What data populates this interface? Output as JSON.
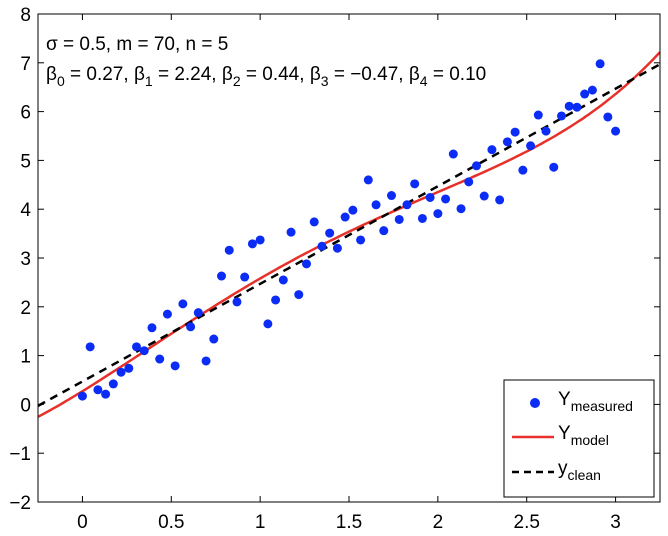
{
  "chart_data": {
    "type": "scatter",
    "title": "",
    "xlabel": "",
    "ylabel": "",
    "xlim": [
      -0.25,
      3.25
    ],
    "ylim": [
      -2,
      8
    ],
    "xticks": [
      "0",
      "0.5",
      "1",
      "1.5",
      "2",
      "2.5",
      "3"
    ],
    "xtick_values": [
      0,
      0.5,
      1,
      1.5,
      2,
      2.5,
      3
    ],
    "yticks": [
      "-2",
      "-1",
      "0",
      "1",
      "2",
      "3",
      "4",
      "5",
      "6",
      "7",
      "8"
    ],
    "ytick_values": [
      -2,
      -1,
      0,
      1,
      2,
      3,
      4,
      5,
      6,
      7,
      8
    ],
    "grid": false,
    "annotations": {
      "line1": "σ = 0.5, m = 70, n = 5",
      "line2": [
        {
          "sym": "β",
          "sub": "0",
          "rest": " = 0.27, "
        },
        {
          "sym": "β",
          "sub": "1",
          "rest": " = 2.24, "
        },
        {
          "sym": "β",
          "sub": "2",
          "rest": " = 0.44, "
        },
        {
          "sym": "β",
          "sub": "3",
          "rest": " = −0.47, "
        },
        {
          "sym": "β",
          "sub": "4",
          "rest": " = 0.10"
        }
      ]
    },
    "coefficients": [
      0.27,
      2.24,
      0.44,
      -0.47,
      0.1
    ],
    "clean_line": {
      "intercept": 0.47,
      "slope": 2.0
    },
    "legend": {
      "placement": "bottom-right",
      "entries": [
        {
          "main": "Y",
          "sub": "measured"
        },
        {
          "main": "Y",
          "sub": "model"
        },
        {
          "main": "y",
          "sub": "clean"
        }
      ]
    },
    "colors": {
      "measured": "#0a2cf5",
      "model": "#e8302a",
      "clean": "#000000"
    },
    "series": [
      {
        "name": "Y_measured",
        "kind": "scatter",
        "x": [
          0,
          0.0435,
          0.087,
          0.1304,
          0.1739,
          0.2174,
          0.2609,
          0.3043,
          0.3478,
          0.3913,
          0.4348,
          0.4783,
          0.5217,
          0.5652,
          0.6087,
          0.6522,
          0.6957,
          0.7391,
          0.7826,
          0.8261,
          0.8696,
          0.913,
          0.9565,
          1.0,
          1.0435,
          1.087,
          1.1304,
          1.1739,
          1.2174,
          1.2609,
          1.3043,
          1.3478,
          1.3913,
          1.4348,
          1.4783,
          1.5217,
          1.5652,
          1.6087,
          1.6522,
          1.6957,
          1.7391,
          1.7826,
          1.8261,
          1.8696,
          1.913,
          1.9565,
          2.0,
          2.0435,
          2.087,
          2.1304,
          2.1739,
          2.2174,
          2.2609,
          2.3043,
          2.3478,
          2.3913,
          2.4348,
          2.4783,
          2.5217,
          2.5652,
          2.6087,
          2.6522,
          2.6957,
          2.7391,
          2.7826,
          2.8261,
          2.8696,
          2.913,
          2.9565,
          3.0
        ],
        "y": [
          0.17,
          1.18,
          0.3,
          0.21,
          0.42,
          0.66,
          0.74,
          1.18,
          1.1,
          1.57,
          0.93,
          1.85,
          0.79,
          2.06,
          1.59,
          1.88,
          0.89,
          1.34,
          2.63,
          3.16,
          2.1,
          2.61,
          3.29,
          3.37,
          1.65,
          2.14,
          2.55,
          3.53,
          2.25,
          2.88,
          3.74,
          3.24,
          3.51,
          3.2,
          3.84,
          3.98,
          3.37,
          4.6,
          4.09,
          3.56,
          4.28,
          3.79,
          4.09,
          4.52,
          3.81,
          4.24,
          3.91,
          4.21,
          5.13,
          4.01,
          4.56,
          4.89,
          4.27,
          5.22,
          4.19,
          5.38,
          5.58,
          4.8,
          5.3,
          5.93,
          5.6,
          4.86,
          5.91,
          6.11,
          6.09,
          6.36,
          6.44,
          6.98,
          5.89,
          5.6
        ]
      },
      {
        "name": "Y_model",
        "kind": "line",
        "equation": "0.27 + 2.24x + 0.44x^2 - 0.47x^3 + 0.10x^4"
      },
      {
        "name": "y_clean",
        "kind": "dashed-line",
        "equation": "0.47 + 2.0x"
      }
    ]
  }
}
